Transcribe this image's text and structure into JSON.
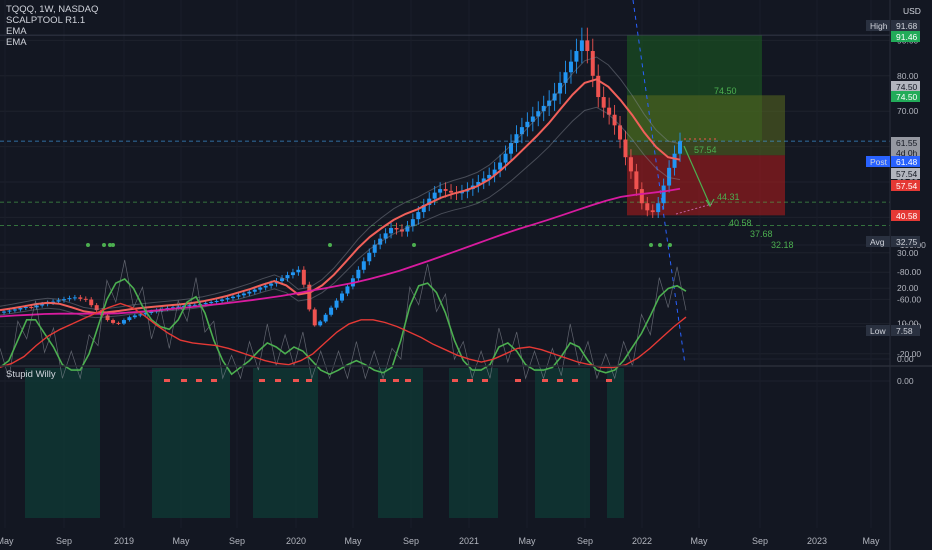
{
  "header": {
    "symbol_line": "TQQQ, 1W, NASDAQ",
    "indicators": [
      "SCALPTOOL R1.1",
      "EMA",
      "EMA"
    ],
    "currency": "USD",
    "osc_title": "Stupid Willy"
  },
  "colors": {
    "background": "#131722",
    "bull": "#2196f3",
    "bear": "#ef5350",
    "ema_fast": "#f1605a",
    "ema_slow": "#d81b9f",
    "long_zone": "#1b5e20",
    "short_zone": "#b71c1c",
    "osc_fast": "#4caf50",
    "osc_slow": "#e53935",
    "osc_bg": "#0f3b36"
  },
  "chart_data": [
    {
      "type": "candlestick",
      "name": "TQQQ weekly",
      "x_ticks": [
        "May",
        "Sep",
        "2019",
        "May",
        "Sep",
        "2020",
        "May",
        "Sep",
        "2021",
        "May",
        "Sep",
        "2022",
        "May",
        "Sep",
        "2023",
        "May"
      ],
      "y_ticks": [
        "0.00",
        "10.00",
        "20.00",
        "30.00",
        "40.00",
        "50.00",
        "60.00",
        "70.00",
        "80.00",
        "90.00"
      ],
      "ylim": [
        0,
        100
      ],
      "price_labels": [
        {
          "label": "High",
          "value": "91.68"
        },
        {
          "label": "",
          "value": "91.46"
        },
        {
          "label": "",
          "value": "74.50"
        },
        {
          "label": "",
          "value": "74.50"
        },
        {
          "label": "",
          "value": "61.55"
        },
        {
          "label": "",
          "value": "4d 0h"
        },
        {
          "label": "Post",
          "value": "61.48"
        },
        {
          "label": "",
          "value": "57.54"
        },
        {
          "label": "",
          "value": "57.54"
        },
        {
          "label": "",
          "value": "40.58"
        },
        {
          "label": "Avg",
          "value": "32.75"
        },
        {
          "label": "Low",
          "value": "7.58"
        }
      ],
      "annotations": [
        "74.50",
        "57.54",
        "44.31",
        "40.58",
        "37.68",
        "32.18"
      ],
      "series": [
        {
          "name": "close",
          "values": [
            13.4,
            13.7,
            14.0,
            14.4,
            14.7,
            14.6,
            15.1,
            15.5,
            15.9,
            16.2,
            16.6,
            16.9,
            17.2,
            17.4,
            17.0,
            16.8,
            15.2,
            13.8,
            12.3,
            11.0,
            10.2,
            10.0,
            11.0,
            11.8,
            12.3,
            12.6,
            13.0,
            13.4,
            13.8,
            14.1,
            14.4,
            14.6,
            14.8,
            15.0,
            15.2,
            15.3,
            15.5,
            15.8,
            16.1,
            16.4,
            16.8,
            17.2,
            17.6,
            18.0,
            18.5,
            19.0,
            19.6,
            20.2,
            20.7,
            21.3,
            22.0,
            22.8,
            23.7,
            24.5,
            25.2,
            21.0,
            14.0,
            9.5,
            10.6,
            12.5,
            14.5,
            16.5,
            18.5,
            20.5,
            22.8,
            25.2,
            27.6,
            30.0,
            32.3,
            34.0,
            35.5,
            37.0,
            36.6,
            36.0,
            37.5,
            39.5,
            41.5,
            43.5,
            45.3,
            47.0,
            48.0,
            47.5,
            47.0,
            46.8,
            47.3,
            48.0,
            49.0,
            50.0,
            51.0,
            52.0,
            53.5,
            55.5,
            58.0,
            61.0,
            63.5,
            65.5,
            67.0,
            68.5,
            70.0,
            71.5,
            73.0,
            75.0,
            78.0,
            81.0,
            84.0,
            87.0,
            90.0,
            87.0,
            80.0,
            74.0,
            71.0,
            69.0,
            66.0,
            62.0,
            57.0,
            53.0,
            48.0,
            44.0,
            42.0,
            41.5,
            44.0,
            49.0,
            54.0,
            58.0,
            61.5
          ]
        },
        {
          "name": "EMA fast",
          "values": [
            13.8,
            14.3,
            14.9,
            15.5,
            15.9,
            15.6,
            14.6,
            13.5,
            13.0,
            13.2,
            13.6,
            14.1,
            14.5,
            14.8,
            15.1,
            15.4,
            15.8,
            16.3,
            17.0,
            17.8,
            18.8,
            19.8,
            21.0,
            22.0,
            20.8,
            18.2,
            18.8,
            20.8,
            23.8,
            27.5,
            31.3,
            34.5,
            37.0,
            39.3,
            41.0,
            42.3,
            44.0,
            45.6,
            46.7,
            47.6,
            48.8,
            50.7,
            53.4,
            56.4,
            59.7,
            63.0,
            66.6,
            70.7,
            74.7,
            78.0,
            79.0,
            76.9,
            73.2,
            68.9,
            64.0,
            59.9,
            57.0,
            56.3
          ]
        },
        {
          "name": "EMA slow",
          "values": [
            12.0,
            12.3,
            12.5,
            12.7,
            12.8,
            12.8,
            12.8,
            12.8,
            12.9,
            13.2,
            13.5,
            13.9,
            14.3,
            14.7,
            15.2,
            15.6,
            16.1,
            16.6,
            17.2,
            17.8,
            18.5,
            19.3,
            20.0,
            20.8,
            21.6,
            22.6,
            23.7,
            24.9,
            26.3,
            27.7,
            29.2,
            30.7,
            32.2,
            33.7,
            35.2,
            36.6,
            37.9,
            39.2,
            40.6,
            42.0,
            43.4,
            44.7,
            45.8,
            46.4,
            46.9,
            47.4,
            48.1
          ]
        }
      ]
    },
    {
      "type": "line",
      "name": "Stupid Willy",
      "y_ticks": [
        "0.00",
        "-20.00",
        "-40.00",
        "-60.00",
        "-80.00",
        "-100.00"
      ],
      "ylim": [
        -100,
        0
      ],
      "series": [
        {
          "name": "fast",
          "values": [
            -10,
            -15,
            -30,
            -45,
            -45,
            -35,
            -25,
            -12,
            -8,
            -8,
            -20,
            -40,
            -60,
            -72,
            -75,
            -68,
            -55,
            -45,
            -40,
            -38,
            -45,
            -58,
            -62,
            -50,
            -30,
            -15,
            -5,
            -10,
            -15,
            -22,
            -28,
            -25,
            -20,
            -25,
            -22,
            -15,
            -8,
            -5,
            -8,
            -12,
            -15,
            -12,
            -8,
            -6,
            -10,
            -30,
            -55,
            -70,
            -72,
            -65,
            -50,
            -30,
            -15,
            -8,
            -8,
            -12,
            -25,
            -28,
            -22,
            -12,
            -8,
            -8,
            -10,
            -18,
            -28,
            -25,
            -15,
            -8,
            -6,
            -8,
            -15,
            -25,
            -35,
            -48,
            -62,
            -68,
            -70,
            -66
          ]
        },
        {
          "name": "slow",
          "values": [
            -10,
            -13,
            -18,
            -26,
            -33,
            -38,
            -42,
            -46,
            -50,
            -54,
            -57,
            -54,
            -48,
            -41,
            -35,
            -30,
            -28,
            -27,
            -26,
            -24,
            -21,
            -18,
            -15,
            -13,
            -12,
            -15,
            -20,
            -28,
            -36,
            -42,
            -45,
            -45,
            -43,
            -40,
            -36,
            -32,
            -27,
            -23,
            -19,
            -16,
            -14,
            -16,
            -20,
            -24,
            -25,
            -23,
            -20,
            -17,
            -14,
            -12,
            -10,
            -10,
            -12,
            -17,
            -24,
            -32,
            -40,
            -47
          ]
        }
      ]
    }
  ]
}
